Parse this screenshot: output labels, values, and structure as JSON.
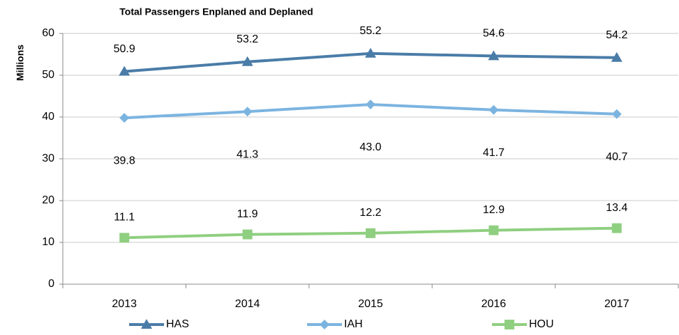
{
  "chart_data": {
    "type": "line",
    "title": "Total Passengers Enplaned and Deplaned",
    "y_label": "Millions",
    "categories": [
      "2013",
      "2014",
      "2015",
      "2016",
      "2017"
    ],
    "series": [
      {
        "name": "HAS",
        "color": "#4a7ca8",
        "marker": "triangle",
        "values": [
          50.9,
          53.2,
          55.2,
          54.6,
          54.2
        ],
        "value_labels": [
          "50.9",
          "53.2",
          "55.2",
          "54.6",
          "54.2"
        ]
      },
      {
        "name": "IAH",
        "color": "#7cb4e0",
        "marker": "diamond",
        "values": [
          39.8,
          41.3,
          43.0,
          41.7,
          40.7
        ],
        "value_labels": [
          "39.8",
          "41.3",
          "43.0",
          "41.7",
          "40.7"
        ]
      },
      {
        "name": "HOU",
        "color": "#8fcf80",
        "marker": "square",
        "values": [
          11.1,
          11.9,
          12.2,
          12.9,
          13.4
        ],
        "value_labels": [
          "11.1",
          "11.9",
          "12.2",
          "12.9",
          "13.4"
        ]
      }
    ],
    "ylim": [
      0,
      60
    ],
    "yticks": [
      0,
      10,
      20,
      30,
      40,
      50,
      60
    ],
    "grid": true,
    "legend": "bottom"
  }
}
